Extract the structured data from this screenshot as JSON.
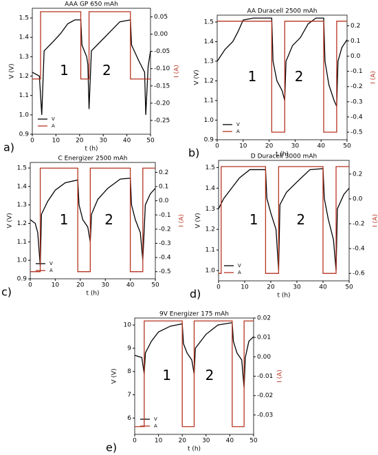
{
  "chart_data": [
    {
      "type": "line",
      "title": "AAA GP 650 mAh",
      "panel_label": "a)",
      "xlabel": "t (h)",
      "ylabel": "V (V)",
      "y2label": "I (A)",
      "annotations": [
        "1",
        "2"
      ],
      "xlim": [
        0,
        50
      ],
      "xticks": [
        0,
        10,
        20,
        30,
        40,
        50
      ],
      "ylim": [
        0.9,
        1.55
      ],
      "yticks": [
        0.9,
        {
          "value": 1,
          "label": "1.0"
        },
        1.1,
        1.2,
        1.3,
        1.4,
        1.5
      ],
      "y2lim": [
        -0.29,
        0.075
      ],
      "y2ticks": [
        0.05,
        {
          "value": 0,
          "label": "0.00"
        },
        -0.05,
        {
          "value": -0.1,
          "label": "-0.10"
        },
        -0.15,
        {
          "value": -0.2,
          "label": "-0.20"
        },
        -0.25
      ],
      "series": [
        {
          "name": "V",
          "color": "#000000",
          "x": [
            0,
            3,
            4,
            5,
            9,
            12,
            15,
            18,
            20.5,
            21,
            23,
            23.5,
            24,
            25,
            29,
            33,
            37,
            41.5,
            42,
            45,
            47.5,
            48,
            49,
            50
          ],
          "values": [
            1.22,
            1.2,
            1.0,
            1.33,
            1.38,
            1.42,
            1.47,
            1.49,
            1.49,
            1.36,
            1.3,
            1.26,
            1.03,
            1.33,
            1.38,
            1.43,
            1.48,
            1.49,
            1.36,
            1.28,
            1.22,
            1.0,
            1.25,
            1.33
          ]
        },
        {
          "name": "A",
          "color": "#b5321f",
          "axis": "y2",
          "x": [
            0,
            3.5,
            3.5,
            20.5,
            20.5,
            24,
            24,
            41.5,
            41.5,
            50
          ],
          "values": [
            -0.13,
            -0.13,
            0.065,
            0.065,
            -0.13,
            -0.13,
            0.065,
            0.065,
            -0.13,
            -0.13
          ]
        }
      ]
    },
    {
      "type": "line",
      "title": "AA Duracell 2500 mAh",
      "panel_label": "b)",
      "xlabel": "t (h)",
      "ylabel": "V (V)",
      "y2label": "I (A)",
      "annotations": [
        "1",
        "2"
      ],
      "xlim": [
        0,
        50
      ],
      "xticks": [
        0,
        10,
        20,
        30,
        40,
        50
      ],
      "ylim": [
        0.9,
        1.535
      ],
      "yticks": [
        0.9,
        {
          "value": 1,
          "label": "1.0"
        },
        1.1,
        1.2,
        1.3,
        1.4,
        1.5
      ],
      "y2lim": [
        -0.55,
        0.27
      ],
      "y2ticks": [
        0.2,
        0.1,
        {
          "value": 0,
          "label": "0.0"
        },
        -0.1,
        -0.2,
        -0.3,
        -0.4,
        -0.5
      ],
      "series": [
        {
          "name": "V",
          "color": "#000000",
          "x": [
            0,
            3,
            6,
            8,
            10,
            14,
            21,
            21.5,
            23,
            25,
            26,
            26.5,
            29,
            32,
            35,
            38,
            41,
            41.5,
            43,
            45,
            46,
            46.5,
            48,
            50
          ],
          "values": [
            1.3,
            1.36,
            1.4,
            1.45,
            1.51,
            1.52,
            1.52,
            1.3,
            1.2,
            1.15,
            1.1,
            1.3,
            1.38,
            1.42,
            1.49,
            1.52,
            1.52,
            1.3,
            1.18,
            1.1,
            1.07,
            1.3,
            1.37,
            1.41
          ]
        },
        {
          "name": "A",
          "color": "#b5321f",
          "axis": "y2",
          "x": [
            0,
            21,
            21,
            26,
            26,
            41,
            41,
            46,
            46,
            50
          ],
          "values": [
            0.23,
            0.23,
            -0.5,
            -0.5,
            0.23,
            0.23,
            -0.5,
            -0.5,
            0.23,
            0.23
          ]
        }
      ]
    },
    {
      "type": "line",
      "title": "C Energizer 2500 mAh",
      "panel_label": "c)",
      "xlabel": "t (h)",
      "ylabel": "V (V)",
      "y2label": "I (A)",
      "annotations": [
        "1",
        "2"
      ],
      "xlim": [
        0,
        50
      ],
      "xticks": [
        0,
        10,
        20,
        30,
        40,
        50
      ],
      "ylim": [
        0.9,
        1.53
      ],
      "yticks": [
        0.9,
        {
          "value": 1,
          "label": "1.0"
        },
        1.1,
        1.2,
        1.3,
        1.4,
        1.5
      ],
      "y2lim": [
        -0.55,
        0.27
      ],
      "y2ticks": [
        0.2,
        0.1,
        {
          "value": 0,
          "label": "0.0"
        },
        -0.1,
        -0.2,
        -0.3,
        -0.4,
        -0.5
      ],
      "series": [
        {
          "name": "V",
          "color": "#000000",
          "x": [
            0,
            2,
            3,
            4,
            4.5,
            7,
            10,
            14,
            19,
            19.5,
            21,
            23,
            24,
            24.5,
            27,
            31,
            36,
            40,
            40.5,
            42,
            44,
            45,
            46,
            48,
            50
          ],
          "values": [
            1.22,
            1.2,
            1.15,
            0.97,
            1.25,
            1.32,
            1.38,
            1.42,
            1.435,
            1.3,
            1.22,
            1.18,
            1.1,
            1.25,
            1.33,
            1.39,
            1.44,
            1.445,
            1.3,
            1.22,
            1.15,
            1.0,
            1.3,
            1.36,
            1.39
          ]
        },
        {
          "name": "A",
          "color": "#b5321f",
          "axis": "y2",
          "x": [
            0,
            4,
            4,
            19,
            19,
            24,
            24,
            40,
            40,
            45,
            45,
            50
          ],
          "values": [
            -0.5,
            -0.5,
            0.23,
            0.23,
            -0.5,
            -0.5,
            0.23,
            0.23,
            -0.5,
            -0.5,
            0.23,
            0.23
          ]
        }
      ]
    },
    {
      "type": "line",
      "title": "D Duracell 3000 mAh",
      "panel_label": "d)",
      "xlabel": "t (h)",
      "ylabel": "V (V)",
      "y2label": "I (A)",
      "annotations": [
        "1",
        "2"
      ],
      "xlim": [
        0,
        50
      ],
      "xticks": [
        0,
        10,
        20,
        30,
        40,
        50
      ],
      "ylim": [
        0.95,
        1.535
      ],
      "yticks": [
        {
          "value": 1,
          "label": "1.0"
        },
        1.1,
        1.2,
        1.3,
        1.4,
        1.5
      ],
      "y2lim": [
        -0.66,
        0.31
      ],
      "y2ticks": [
        0.2,
        {
          "value": 0,
          "label": "0.0"
        },
        -0.2,
        -0.4,
        -0.6
      ],
      "series": [
        {
          "name": "V",
          "color": "#000000",
          "x": [
            0,
            2,
            5,
            8,
            12,
            18,
            18.5,
            20,
            22,
            23,
            23.5,
            26,
            30,
            35,
            40,
            40.5,
            42,
            44,
            45,
            45.5,
            48,
            50
          ],
          "values": [
            1.3,
            1.35,
            1.4,
            1.45,
            1.49,
            1.49,
            1.35,
            1.28,
            1.2,
            1.0,
            1.32,
            1.38,
            1.43,
            1.49,
            1.495,
            1.35,
            1.25,
            1.15,
            1.0,
            1.3,
            1.37,
            1.4
          ]
        },
        {
          "name": "A",
          "color": "#b5321f",
          "axis": "y2",
          "x": [
            0,
            1,
            1,
            18,
            18,
            23,
            23,
            40,
            40,
            45,
            45,
            50
          ],
          "values": [
            -0.6,
            -0.6,
            0.26,
            0.26,
            -0.6,
            -0.6,
            0.26,
            0.26,
            -0.6,
            -0.6,
            0.26,
            0.26
          ]
        }
      ]
    },
    {
      "type": "line",
      "title": "9V Energizer 175 mAh",
      "panel_label": "e)",
      "xlabel": "t (h)",
      "ylabel": "V (V)",
      "y2label": "I (A)",
      "annotations": [
        "1",
        "2"
      ],
      "xlim": [
        0,
        50
      ],
      "xticks": [
        0,
        10,
        20,
        30,
        40,
        50
      ],
      "ylim": [
        5.3,
        10.3
      ],
      "yticks": [
        6,
        7,
        8,
        9,
        10
      ],
      "y2lim": [
        -0.04,
        0.02
      ],
      "y2ticks": [
        0.02,
        0.01,
        {
          "value": 0,
          "label": "0.00"
        },
        -0.01,
        -0.02,
        -0.03
      ],
      "series": [
        {
          "name": "V",
          "color": "#000000",
          "x": [
            0,
            3,
            4,
            4.5,
            7,
            10,
            15,
            20,
            20.5,
            22,
            24,
            25,
            25.5,
            30,
            35,
            41,
            41.5,
            43,
            45,
            46,
            46.5,
            48,
            50
          ],
          "values": [
            8.7,
            8.6,
            7.9,
            8.8,
            9.3,
            9.7,
            9.95,
            10.05,
            9.2,
            8.8,
            8.5,
            7.9,
            9.0,
            9.6,
            10.0,
            10.1,
            9.3,
            8.8,
            8.5,
            7.3,
            8.6,
            9.3,
            9.5
          ]
        },
        {
          "name": "A",
          "color": "#b5321f",
          "axis": "y2",
          "x": [
            0,
            4,
            4,
            20,
            20,
            25,
            25,
            41,
            41,
            46,
            46,
            50
          ],
          "values": [
            -0.036,
            -0.036,
            0.0185,
            0.0185,
            -0.036,
            -0.036,
            0.0185,
            0.0185,
            -0.036,
            -0.036,
            0.0185,
            0.0185
          ]
        }
      ]
    }
  ]
}
